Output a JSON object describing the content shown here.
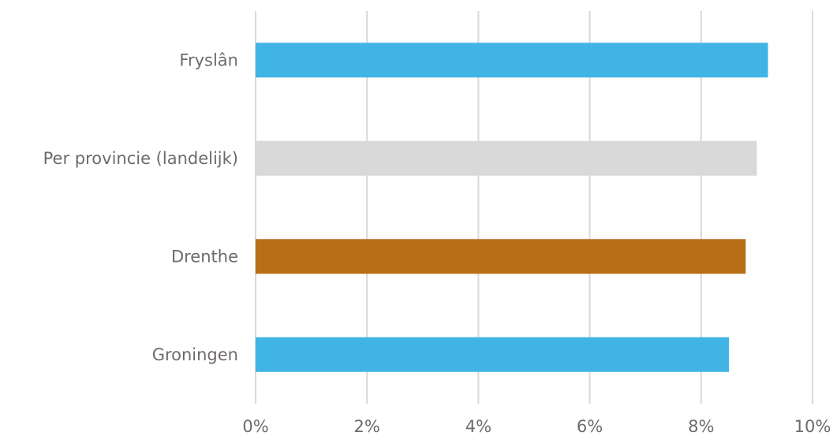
{
  "chart_data": {
    "type": "bar",
    "orientation": "horizontal",
    "title": "",
    "xlabel": "",
    "ylabel": "",
    "categories": [
      "Fryslân",
      "Per provincie (landelijk)",
      "Drenthe",
      "Groningen"
    ],
    "values": [
      9.2,
      9.0,
      8.8,
      8.5
    ],
    "bar_colors": [
      "#41b4e6",
      "#d9d9d9",
      "#b86e17",
      "#41b4e6"
    ],
    "xlim": [
      0,
      10
    ],
    "x_ticks": [
      0,
      2,
      4,
      6,
      8,
      10
    ],
    "x_tick_labels": [
      "0%",
      "2%",
      "4%",
      "6%",
      "8%",
      "10%"
    ],
    "grid": "vertical",
    "legend": "none"
  },
  "colors": {
    "grid": "#d9d9d9",
    "label_text": "#6f6a6a"
  }
}
